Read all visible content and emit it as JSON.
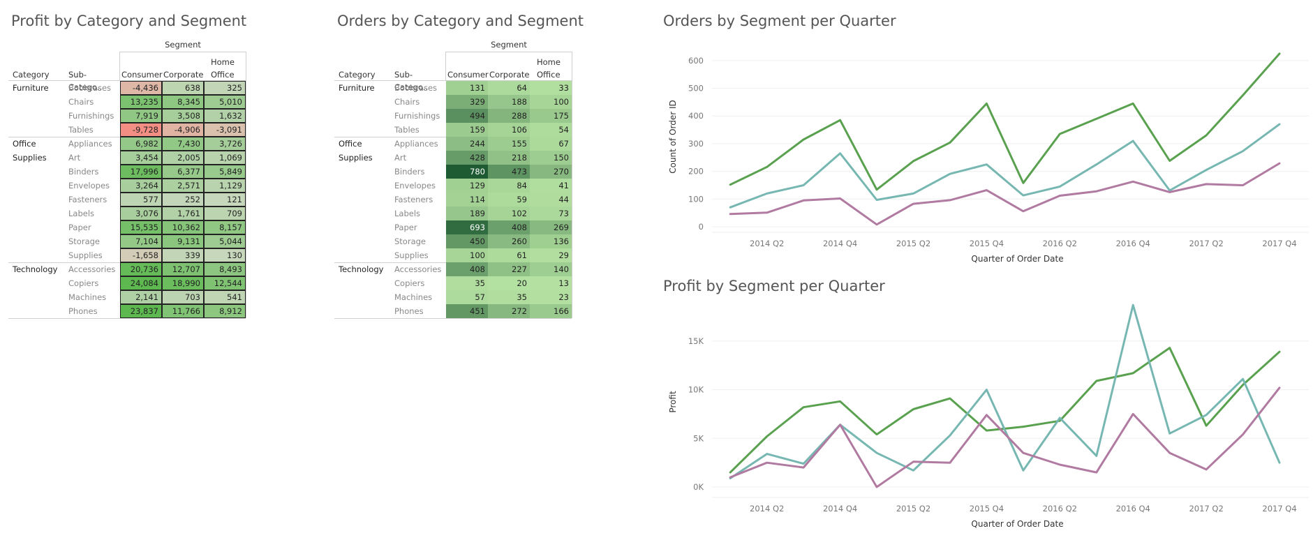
{
  "titles": {
    "profit_heat": "Profit by Category and Segment",
    "orders_heat": "Orders by Category and Segment",
    "orders_line": "Orders by Segment per Quarter",
    "profit_line": "Profit by Segment per Quarter"
  },
  "heatmap_headers": {
    "segment": "Segment",
    "category": "Category",
    "subcategory": "Sub-Catego..",
    "consumer": "Consumer",
    "corporate": "Corporate",
    "home_office_line1": "Home",
    "home_office_line2": "Office"
  },
  "rows": [
    {
      "category": "Furniture",
      "sub": "Bookcases"
    },
    {
      "category": "",
      "sub": "Chairs"
    },
    {
      "category": "",
      "sub": "Furnishings"
    },
    {
      "category": "",
      "sub": "Tables"
    },
    {
      "category": "Office Supplies",
      "sub": "Appliances"
    },
    {
      "category": "",
      "sub": "Art"
    },
    {
      "category": "",
      "sub": "Binders"
    },
    {
      "category": "",
      "sub": "Envelopes"
    },
    {
      "category": "",
      "sub": "Fasteners"
    },
    {
      "category": "",
      "sub": "Labels"
    },
    {
      "category": "",
      "sub": "Paper"
    },
    {
      "category": "",
      "sub": "Storage"
    },
    {
      "category": "",
      "sub": "Supplies"
    },
    {
      "category": "Technology",
      "sub": "Accessories"
    },
    {
      "category": "",
      "sub": "Copiers"
    },
    {
      "category": "",
      "sub": "Machines"
    },
    {
      "category": "",
      "sub": "Phones"
    }
  ],
  "category_labels": {
    "furniture": "Furniture",
    "office1": "Office",
    "office2": "Supplies",
    "technology": "Technology"
  },
  "profit_values": [
    [
      "-4,436",
      "638",
      "325"
    ],
    [
      "13,235",
      "8,345",
      "5,010"
    ],
    [
      "7,919",
      "3,508",
      "1,632"
    ],
    [
      "-9,728",
      "-4,906",
      "-3,091"
    ],
    [
      "6,982",
      "7,430",
      "3,726"
    ],
    [
      "3,454",
      "2,005",
      "1,069"
    ],
    [
      "17,996",
      "6,377",
      "5,849"
    ],
    [
      "3,264",
      "2,571",
      "1,129"
    ],
    [
      "577",
      "252",
      "121"
    ],
    [
      "3,076",
      "1,761",
      "709"
    ],
    [
      "15,535",
      "10,362",
      "8,157"
    ],
    [
      "7,104",
      "9,131",
      "5,044"
    ],
    [
      "-1,658",
      "339",
      "130"
    ],
    [
      "20,736",
      "12,707",
      "8,493"
    ],
    [
      "24,084",
      "18,990",
      "12,544"
    ],
    [
      "2,141",
      "703",
      "541"
    ],
    [
      "23,837",
      "11,766",
      "8,912"
    ]
  ],
  "order_values": [
    [
      "131",
      "64",
      "33"
    ],
    [
      "329",
      "188",
      "100"
    ],
    [
      "494",
      "288",
      "175"
    ],
    [
      "159",
      "106",
      "54"
    ],
    [
      "244",
      "155",
      "67"
    ],
    [
      "428",
      "218",
      "150"
    ],
    [
      "780",
      "473",
      "270"
    ],
    [
      "129",
      "84",
      "41"
    ],
    [
      "114",
      "59",
      "44"
    ],
    [
      "189",
      "102",
      "73"
    ],
    [
      "693",
      "408",
      "269"
    ],
    [
      "450",
      "260",
      "136"
    ],
    [
      "100",
      "61",
      "29"
    ],
    [
      "408",
      "227",
      "140"
    ],
    [
      "35",
      "20",
      "13"
    ],
    [
      "57",
      "35",
      "23"
    ],
    [
      "451",
      "272",
      "166"
    ]
  ],
  "colors": {
    "consumer": "#59a14f",
    "corporate": "#76b7b2",
    "home_office": "#b07aa1",
    "neg": "#f28e84",
    "neutral": "#cdd9c2",
    "pos_dark": "#1e5a32",
    "pos_light": "#b6e3a3"
  },
  "chart_data": [
    {
      "type": "line",
      "title": "Orders by Segment per Quarter",
      "xlabel": "Quarter of Order Date",
      "ylabel": "Count of Order ID",
      "ylim": [
        0,
        650
      ],
      "yticks": [
        0,
        100,
        200,
        300,
        400,
        500,
        600
      ],
      "ytick_labels": [
        "0",
        "100",
        "200",
        "300",
        "400",
        "500",
        "600"
      ],
      "x": [
        "2014 Q1",
        "2014 Q2",
        "2014 Q3",
        "2014 Q4",
        "2015 Q1",
        "2015 Q2",
        "2015 Q3",
        "2015 Q4",
        "2016 Q1",
        "2016 Q2",
        "2016 Q3",
        "2016 Q4",
        "2017 Q1",
        "2017 Q2",
        "2017 Q3",
        "2017 Q4"
      ],
      "xtick_labels": [
        "2014 Q2",
        "2014 Q4",
        "2015 Q2",
        "2015 Q4",
        "2016 Q2",
        "2016 Q4",
        "2017 Q2",
        "2017 Q4"
      ],
      "series": [
        {
          "color": "#59a14f",
          "values": [
            152,
            216,
            315,
            385,
            134,
            237,
            304,
            445,
            158,
            335,
            390,
            445,
            238,
            330,
            475,
            625
          ]
        },
        {
          "color": "#76b7b2",
          "values": [
            70,
            120,
            150,
            265,
            97,
            120,
            191,
            225,
            113,
            145,
            225,
            310,
            131,
            205,
            273,
            370
          ]
        },
        {
          "color": "#b07aa1",
          "values": [
            46,
            51,
            95,
            102,
            8,
            83,
            96,
            132,
            56,
            112,
            128,
            163,
            125,
            154,
            150,
            229
          ]
        }
      ]
    },
    {
      "type": "line",
      "title": "Profit by Segment per Quarter",
      "xlabel": "Quarter of Order Date",
      "ylabel": "Profit",
      "ylim": [
        -500,
        18000
      ],
      "yticks": [
        0,
        5000,
        10000,
        15000
      ],
      "ytick_labels": [
        "0K",
        "5K",
        "10K",
        "15K"
      ],
      "x": [
        "2014 Q1",
        "2014 Q2",
        "2014 Q3",
        "2014 Q4",
        "2015 Q1",
        "2015 Q2",
        "2015 Q3",
        "2015 Q4",
        "2016 Q1",
        "2016 Q2",
        "2016 Q3",
        "2016 Q4",
        "2017 Q1",
        "2017 Q2",
        "2017 Q3",
        "2017 Q4"
      ],
      "xtick_labels": [
        "2014 Q2",
        "2014 Q4",
        "2015 Q2",
        "2015 Q4",
        "2016 Q2",
        "2016 Q4",
        "2017 Q2",
        "2017 Q4"
      ],
      "series": [
        {
          "color": "#59a14f",
          "values": [
            1500,
            5200,
            8200,
            8800,
            5400,
            8000,
            9100,
            5800,
            6200,
            6800,
            10900,
            11700,
            14300,
            6300,
            10500,
            13900
          ]
        },
        {
          "color": "#76b7b2",
          "values": [
            900,
            3400,
            2400,
            6400,
            3500,
            1700,
            5300,
            10000,
            1700,
            7100,
            3200,
            18700,
            5500,
            7400,
            11100,
            2500
          ]
        },
        {
          "color": "#b07aa1",
          "values": [
            1000,
            2500,
            2000,
            6400,
            0,
            2600,
            2500,
            7400,
            3500,
            2300,
            1500,
            7500,
            3500,
            1800,
            5400,
            10200
          ]
        }
      ]
    }
  ]
}
